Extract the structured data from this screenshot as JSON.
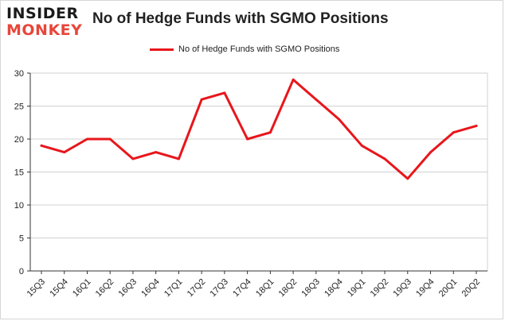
{
  "branding": {
    "logo_line1": "INSIDER",
    "logo_line2": "MONKEY"
  },
  "colors": {
    "line": "#e8161b",
    "grid": "#d0d0d0",
    "axis": "#333333",
    "logo_accent": "#e8463a"
  },
  "chart_data": {
    "type": "line",
    "title": "No of Hedge Funds with SGMO Positions",
    "xlabel": "",
    "ylabel": "",
    "ylim": [
      0,
      30
    ],
    "yticks": [
      0,
      5,
      10,
      15,
      20,
      25,
      30
    ],
    "grid": true,
    "legend_position": "top-center",
    "categories": [
      "15Q3",
      "15Q4",
      "16Q1",
      "16Q2",
      "16Q3",
      "16Q4",
      "17Q1",
      "17Q2",
      "17Q3",
      "17Q4",
      "18Q1",
      "18Q2",
      "18Q3",
      "18Q4",
      "19Q1",
      "19Q2",
      "19Q3",
      "19Q4",
      "20Q1",
      "20Q2"
    ],
    "series": [
      {
        "name": "No of Hedge Funds with SGMO Positions",
        "values": [
          19,
          18,
          20,
          20,
          17,
          18,
          17,
          26,
          27,
          20,
          21,
          29,
          26,
          23,
          19,
          17,
          14,
          18,
          21,
          22
        ]
      }
    ]
  }
}
